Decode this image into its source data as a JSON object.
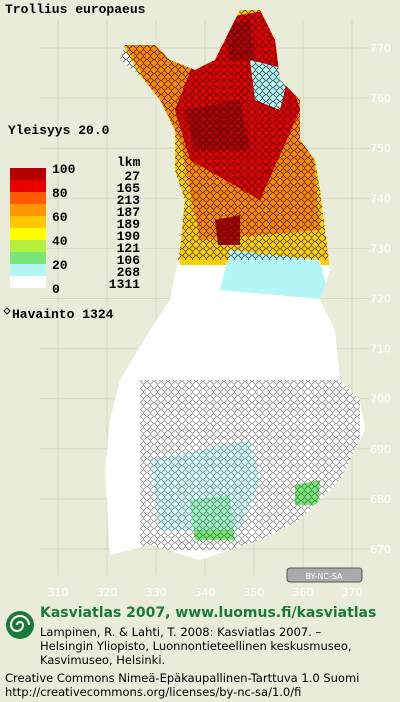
{
  "title": "Trollius europaeus",
  "frequency": "Yleisyys 20.0",
  "legend": {
    "scale": [
      100,
      80,
      60,
      40,
      20,
      0
    ],
    "count_header": "lkm",
    "counts": [
      27,
      165,
      213,
      187,
      189,
      190,
      121,
      106,
      268,
      1311
    ],
    "colors": [
      "#b40000",
      "#e80000",
      "#ff5a00",
      "#ff9600",
      "#ffc800",
      "#ffff00",
      "#b4f03c",
      "#78e678",
      "#b4f5f5",
      "#ffffff"
    ],
    "observation": "Havainto 1324"
  },
  "map": {
    "yticks": [
      770,
      760,
      750,
      740,
      730,
      720,
      710,
      700,
      690,
      680,
      670
    ],
    "xticks": [
      310,
      320,
      330,
      340,
      350,
      360,
      370
    ],
    "license_badge": "BY-NC-SA"
  },
  "footer": {
    "heading": "Kasviatlas 2007, www.luomus.fi/kasviatlas",
    "citation": [
      "Lampinen, R. & Lahti, T. 2008: Kasviatlas 2007. –",
      "Helsingin Yliopisto, Luonnontieteellinen keskusmuseo,",
      "Kasvimuseo, Helsinki."
    ],
    "license": "Creative Commons Nimeä-Epäkaupallinen-Tarttuva 1.0 Suomi",
    "url": "http://creativecommons.org/licenses/by-nc-sa/1.0/fi"
  }
}
